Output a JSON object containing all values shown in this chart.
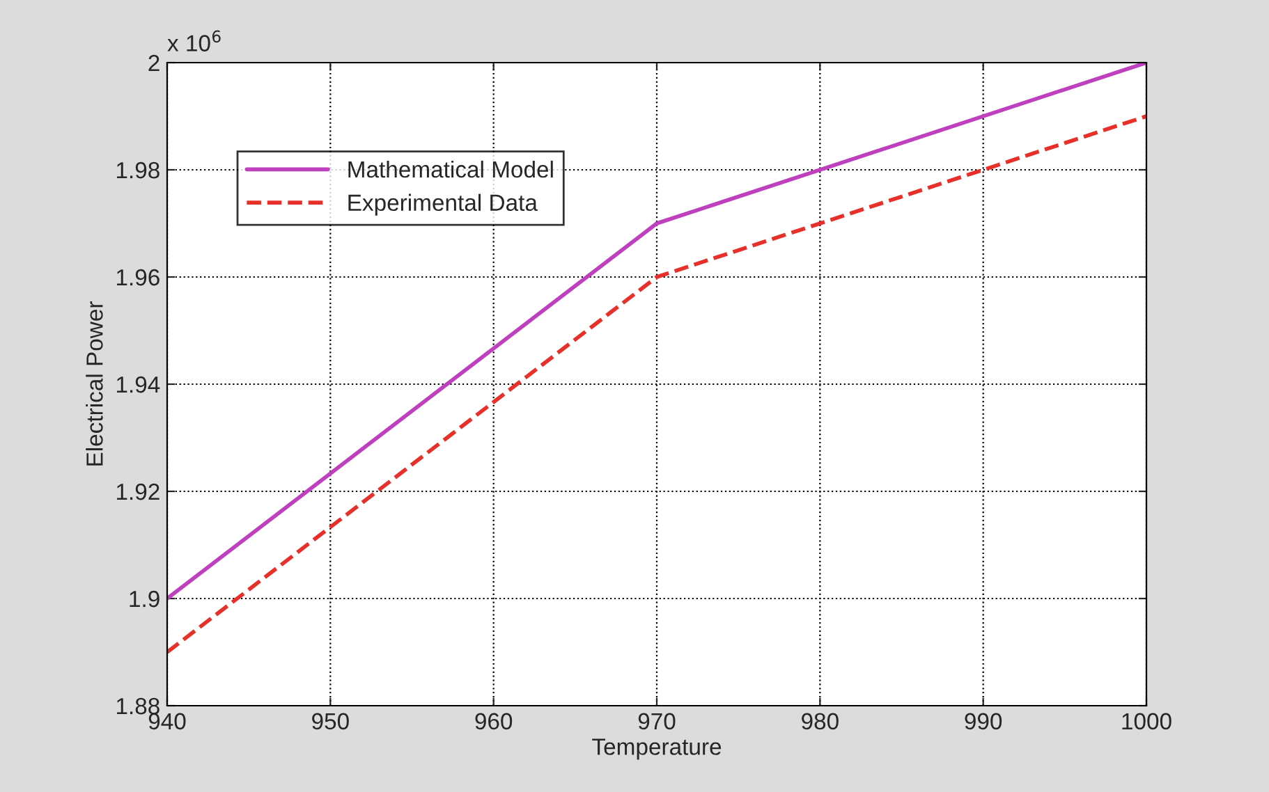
{
  "chart_data": {
    "type": "line",
    "xlabel": "Temperature",
    "ylabel": "Electrical Power",
    "annotations": [
      "x 10$^{6}$"
    ],
    "xlim": [
      940,
      1000
    ],
    "xticks": [
      940,
      950,
      960,
      970,
      980,
      990,
      1000
    ],
    "ylim": [
      1.88,
      2
    ],
    "yticks": [
      1.88,
      1.9,
      1.92,
      1.94,
      1.96,
      1.98,
      2
    ],
    "grid": true,
    "legend": "top left",
    "series": [
      {
        "name": "Mathematical Model",
        "color": "#bf40bf",
        "x": [
          940,
          970,
          1000
        ],
        "values": [
          1.9,
          1.97,
          2.0
        ],
        "line_style": "solid"
      },
      {
        "name": "Experimental Data",
        "color": "#e8302a",
        "x": [
          940,
          970,
          1000
        ],
        "values": [
          1.89,
          1.96,
          1.99
        ],
        "line_style": "dashed"
      }
    ]
  }
}
